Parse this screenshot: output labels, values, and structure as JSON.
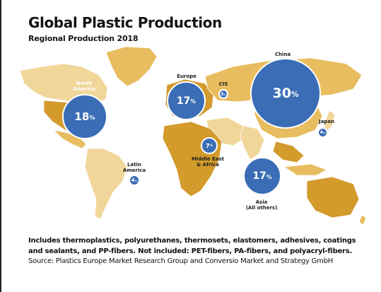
{
  "title": "Global Plastic Production",
  "subtitle": "Regional Production 2018",
  "colors": {
    "bubble": "#3a6db5",
    "land_light": "#f1d69a",
    "land_mid": "#e8bd5f",
    "land_dark": "#d39a2c"
  },
  "regions": [
    {
      "id": "north-america",
      "label": "North\nAmerica",
      "value": "18",
      "unit": "%"
    },
    {
      "id": "latin-america",
      "label": "Latin\nAmerica",
      "value": "4",
      "unit": "%"
    },
    {
      "id": "europe",
      "label": "Europe",
      "value": "17",
      "unit": "%"
    },
    {
      "id": "cis",
      "label": "CIS",
      "value": "3",
      "unit": "%"
    },
    {
      "id": "middle-east-africa",
      "label": "Middle East\n& Africa",
      "value": "7",
      "unit": "%"
    },
    {
      "id": "china",
      "label": "China",
      "value": "30",
      "unit": "%"
    },
    {
      "id": "japan",
      "label": "Japan",
      "value": "4",
      "unit": "%"
    },
    {
      "id": "asia",
      "label": "Asia\n(All others)",
      "value": "17",
      "unit": "%"
    }
  ],
  "footnote": {
    "bold": "Includes thermoplastics, polyurethanes, thermosets, elastomers, adhesives, coatings and sealants, and PP-fibers. Not included: PET-fibers, PA-fibers, and polyacryl-fibers.",
    "source": "Source: Plastics Europe Market Research Group and Conversio Market and Strategy GmbH"
  }
}
